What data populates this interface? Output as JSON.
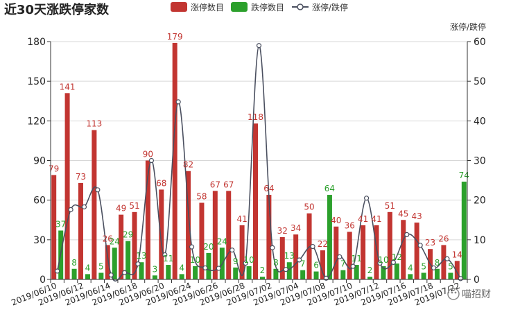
{
  "chart_data": {
    "type": "bar",
    "title": "近30天涨跌停家数",
    "legend": [
      "涨停数目",
      "跌停数目",
      "涨停/跌停"
    ],
    "right_axis_label": "涨停/跌停",
    "left_ylim": [
      0,
      180
    ],
    "left_yticks": [
      0,
      30,
      60,
      90,
      120,
      150,
      180
    ],
    "right_ylim": [
      0,
      60
    ],
    "right_yticks": [
      0,
      10,
      20,
      30,
      40,
      50,
      60
    ],
    "x_tick_labels": [
      "2019/06/10",
      "2019/06/12",
      "2019/06/14",
      "2019/06/18",
      "2019/06/20",
      "2019/06/24",
      "2019/06/26",
      "2019/06/28",
      "2019/07/02",
      "2019/07/04",
      "2019/07/08",
      "2019/07/10",
      "2019/07/12",
      "2019/07/16",
      "2019/07/18",
      "2019/07/22"
    ],
    "series": [
      {
        "name": "涨停数目",
        "color": "#c23531",
        "values": [
          79,
          141,
          73,
          113,
          26,
          49,
          51,
          90,
          68,
          179,
          82,
          58,
          67,
          67,
          41,
          118,
          64,
          32,
          34,
          50,
          22,
          40,
          36,
          41,
          41,
          51,
          45,
          43,
          23,
          26,
          14
        ]
      },
      {
        "name": "跌停数目",
        "color": "#2ca02c",
        "values": [
          37,
          8,
          4,
          5,
          24,
          29,
          13,
          3,
          11,
          4,
          10,
          20,
          24,
          9,
          10,
          2,
          8,
          13,
          7,
          6,
          64,
          7,
          11,
          2,
          10,
          12,
          4,
          5,
          8,
          5,
          74
        ]
      },
      {
        "name": "涨停/跌停",
        "color": "#4a4f5f",
        "values": [
          2.1,
          17.6,
          18.3,
          22.6,
          1.1,
          1.7,
          3.9,
          30.0,
          6.2,
          44.8,
          8.2,
          2.9,
          2.8,
          7.4,
          4.1,
          59.0,
          8.0,
          2.5,
          4.9,
          8.3,
          0.3,
          5.7,
          3.3,
          20.5,
          4.1,
          4.3,
          11.3,
          8.6,
          2.9,
          5.2,
          0.2
        ]
      }
    ]
  },
  "watermark": "喵招财"
}
